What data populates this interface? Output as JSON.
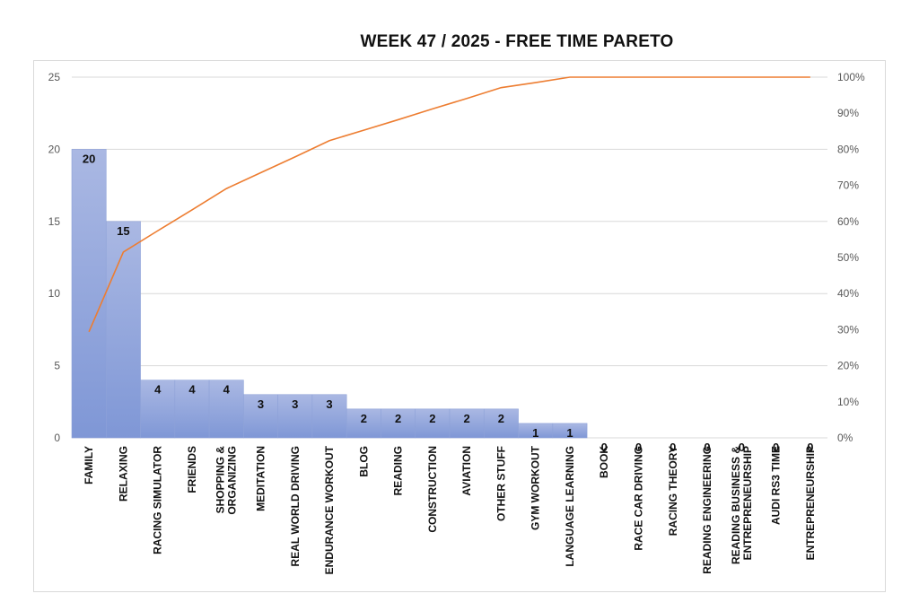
{
  "chart_data": {
    "type": "bar",
    "title": "WEEK 47 / 2025  - FREE TIME PARETO",
    "categories": [
      [
        "FAMILY"
      ],
      [
        "RELAXING"
      ],
      [
        "RACING SIMULATOR"
      ],
      [
        "FRIENDS"
      ],
      [
        "SHOPPING &",
        "ORGANIZING"
      ],
      [
        "MEDITATION"
      ],
      [
        "REAL WORLD DRIVING"
      ],
      [
        "ENDURANCE WORKOUT"
      ],
      [
        "BLOG"
      ],
      [
        "READING"
      ],
      [
        "CONSTRUCTION"
      ],
      [
        "AVIATION"
      ],
      [
        "OTHER STUFF"
      ],
      [
        "GYM WORKOUT"
      ],
      [
        "LANGUAGE LEARNING"
      ],
      [
        "BOOK"
      ],
      [
        "RACE CAR DRIVING"
      ],
      [
        "RACING THEORY"
      ],
      [
        "READING ENGINEERING"
      ],
      [
        "READING BUSINESS &",
        "ENTREPRENEURSHIP"
      ],
      [
        "AUDI RS3 TIME"
      ],
      [
        "ENTREPRENEURSHIP"
      ]
    ],
    "values": [
      20,
      15,
      4,
      4,
      4,
      3,
      3,
      3,
      2,
      2,
      2,
      2,
      2,
      1,
      1,
      0,
      0,
      0,
      0,
      0,
      0,
      0
    ],
    "cumulative_percent": [
      29.4,
      51.5,
      57.4,
      63.2,
      69.1,
      73.5,
      77.9,
      82.4,
      85.3,
      88.2,
      91.2,
      94.1,
      97.1,
      98.5,
      100,
      100,
      100,
      100,
      100,
      100,
      100,
      100
    ],
    "y_left": {
      "lim": [
        0,
        25
      ],
      "ticks": [
        "0",
        "5",
        "10",
        "15",
        "20",
        "25"
      ]
    },
    "y_right": {
      "lim": [
        0,
        100
      ],
      "ticks": [
        "0%",
        "10%",
        "20%",
        "30%",
        "40%",
        "50%",
        "60%",
        "70%",
        "80%",
        "90%",
        "100%"
      ]
    },
    "grid": true,
    "colors": {
      "bar_top": "#aab8e3",
      "bar_bottom": "#7f97d6",
      "bar_edge": "#8ea2d8",
      "line": "#ed7d31",
      "grid": "#d9d9d9"
    }
  }
}
